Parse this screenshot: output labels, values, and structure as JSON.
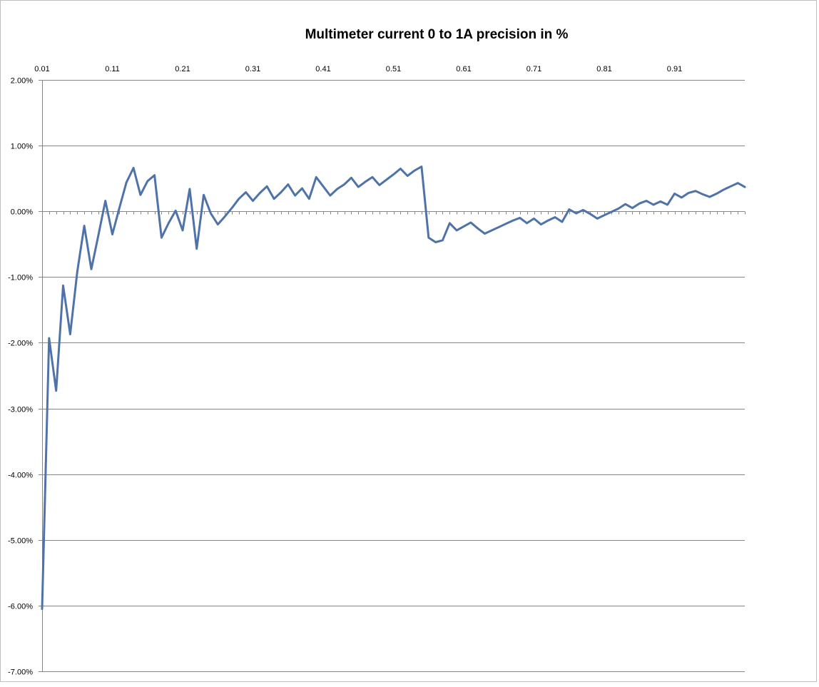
{
  "chart_data": {
    "type": "line",
    "title": "Multimeter current  0 to 1A precision in %",
    "xlabel": "",
    "ylabel": "",
    "x_tick_labels": [
      "0.01",
      "0.11",
      "0.21",
      "0.31",
      "0.41",
      "0.51",
      "0.61",
      "0.71",
      "0.81",
      "0.91"
    ],
    "y_tick_labels": [
      "2.00%",
      "1.00%",
      "0.00%",
      "-1.00%",
      "-2.00%",
      "-3.00%",
      "-4.00%",
      "-5.00%",
      "-6.00%",
      "-7.00%"
    ],
    "xlim": [
      0.01,
      1.01
    ],
    "ylim": [
      -7.0,
      2.0
    ],
    "x_axis_position": "top",
    "grid": "horizontal",
    "legend": "none",
    "series_color": "#4f73a8",
    "series": [
      {
        "x": [
          0.01,
          0.02,
          0.03,
          0.04,
          0.05,
          0.06,
          0.07,
          0.08,
          0.09,
          0.1,
          0.11,
          0.12,
          0.13,
          0.14,
          0.15,
          0.16,
          0.17,
          0.18,
          0.19,
          0.2,
          0.21,
          0.22,
          0.23,
          0.24,
          0.25,
          0.26,
          0.27,
          0.28,
          0.29,
          0.3,
          0.31,
          0.32,
          0.33,
          0.34,
          0.35,
          0.36,
          0.37,
          0.38,
          0.39,
          0.4,
          0.41,
          0.42,
          0.43,
          0.44,
          0.45,
          0.46,
          0.47,
          0.48,
          0.49,
          0.5,
          0.51,
          0.52,
          0.53,
          0.54,
          0.55,
          0.56,
          0.57,
          0.58,
          0.59,
          0.6,
          0.61,
          0.62,
          0.63,
          0.64,
          0.65,
          0.66,
          0.67,
          0.68,
          0.69,
          0.7,
          0.71,
          0.72,
          0.73,
          0.74,
          0.75,
          0.76,
          0.77,
          0.78,
          0.79,
          0.8,
          0.81,
          0.82,
          0.83,
          0.84,
          0.85,
          0.86,
          0.87,
          0.88,
          0.89,
          0.9,
          0.91,
          0.92,
          0.93,
          0.94,
          0.95,
          0.96,
          0.97,
          0.98,
          0.99,
          1.0,
          1.01
        ],
        "values": [
          -6.05,
          -1.93,
          -2.73,
          -1.13,
          -1.87,
          -0.92,
          -0.22,
          -0.88,
          -0.37,
          0.16,
          -0.35,
          0.05,
          0.44,
          0.66,
          0.25,
          0.46,
          0.55,
          -0.4,
          -0.18,
          0.01,
          -0.29,
          0.34,
          -0.57,
          0.25,
          -0.03,
          -0.2,
          -0.08,
          0.05,
          0.19,
          0.29,
          0.16,
          0.28,
          0.38,
          0.19,
          0.29,
          0.41,
          0.24,
          0.35,
          0.19,
          0.52,
          0.38,
          0.24,
          0.34,
          0.41,
          0.51,
          0.37,
          0.45,
          0.52,
          0.4,
          0.48,
          0.56,
          0.65,
          0.54,
          0.62,
          0.68,
          -0.4,
          -0.47,
          -0.44,
          -0.18,
          -0.29,
          -0.23,
          -0.17,
          -0.26,
          -0.34,
          -0.29,
          -0.24,
          -0.19,
          -0.14,
          -0.1,
          -0.18,
          -0.11,
          -0.2,
          -0.14,
          -0.09,
          -0.16,
          0.03,
          -0.03,
          0.02,
          -0.04,
          -0.11,
          -0.06,
          -0.01,
          0.04,
          0.11,
          0.05,
          0.12,
          0.16,
          0.1,
          0.15,
          0.1,
          0.27,
          0.21,
          0.28,
          0.31,
          0.26,
          0.22,
          0.27,
          0.33,
          0.38,
          0.43,
          0.37
        ]
      }
    ]
  }
}
